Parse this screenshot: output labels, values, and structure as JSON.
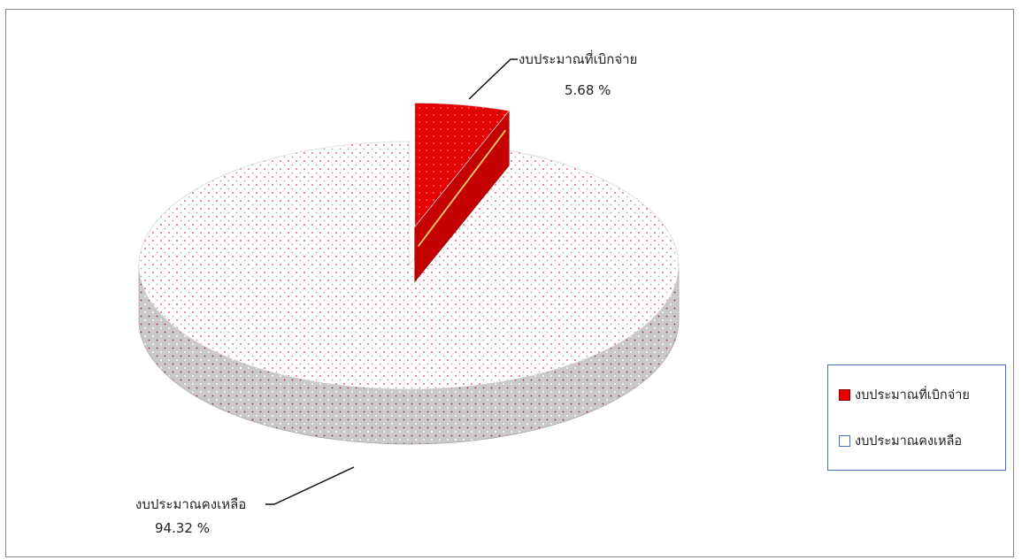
{
  "chart_data": {
    "type": "pie",
    "variant": "3d-exploded",
    "slices": [
      {
        "label": "งบประมาณที่เบิกจ่าย",
        "value": 5.68,
        "value_label": "5.68 %",
        "color": "#e60000",
        "exploded": true
      },
      {
        "label": "งบประมาณคงเหลือ",
        "value": 94.32,
        "value_label": "94.32  %",
        "color": "#ffffff",
        "exploded": false
      }
    ],
    "legend": {
      "placement": "right",
      "entries": [
        "งบประมาณที่เบิกจ่าย",
        "งบประมาณคงเหลือ"
      ]
    },
    "colors": {
      "side": "#c8c8c8",
      "dots": "#d04060",
      "legend_border": "#4a72b8"
    }
  }
}
